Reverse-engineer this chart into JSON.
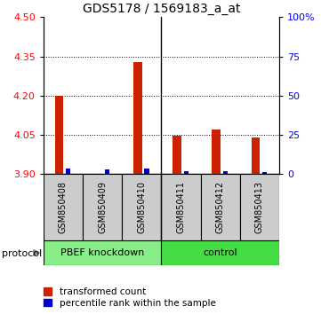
{
  "title": "GDS5178 / 1569183_a_at",
  "samples": [
    "GSM850408",
    "GSM850409",
    "GSM850410",
    "GSM850411",
    "GSM850412",
    "GSM850413"
  ],
  "red_values": [
    4.201,
    3.902,
    4.33,
    4.046,
    4.07,
    4.04
  ],
  "blue_values": [
    3.923,
    3.918,
    3.922,
    3.912,
    3.912,
    3.91
  ],
  "baseline": 3.9,
  "ylim_left": [
    3.9,
    4.5
  ],
  "ylim_right": [
    0,
    100
  ],
  "left_ticks": [
    3.9,
    4.05,
    4.2,
    4.35,
    4.5
  ],
  "right_ticks": [
    0,
    25,
    50,
    75,
    100
  ],
  "right_tick_labels": [
    "0",
    "25",
    "50",
    "75",
    "100%"
  ],
  "groups": [
    {
      "label": "PBEF knockdown",
      "indices": [
        0,
        1,
        2
      ],
      "color": "#88ee88"
    },
    {
      "label": "control",
      "indices": [
        3,
        4,
        5
      ],
      "color": "#44dd44"
    }
  ],
  "red_color": "#cc2200",
  "blue_color": "#0000cc",
  "label_bg_color": "#cccccc",
  "protocol_label": "protocol",
  "legend_red": "transformed count",
  "legend_blue": "percentile rank within the sample",
  "title_fontsize": 10,
  "tick_fontsize": 8,
  "sample_fontsize": 7
}
